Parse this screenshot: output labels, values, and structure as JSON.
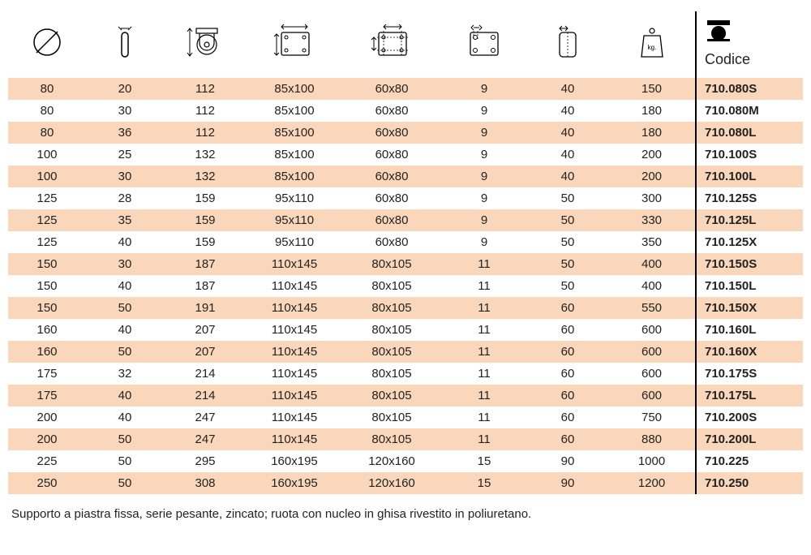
{
  "table": {
    "header_label": "Codice",
    "columns": [
      {
        "id": "diameter"
      },
      {
        "id": "wheel_width"
      },
      {
        "id": "overall_height"
      },
      {
        "id": "plate_size"
      },
      {
        "id": "bolt_hole_spacing"
      },
      {
        "id": "bolt_hole_diameter"
      },
      {
        "id": "offset"
      },
      {
        "id": "load_capacity_kg"
      },
      {
        "id": "code"
      }
    ],
    "rows": [
      [
        "80",
        "20",
        "112",
        "85x100",
        "60x80",
        "9",
        "40",
        "150",
        "710.080S"
      ],
      [
        "80",
        "30",
        "112",
        "85x100",
        "60x80",
        "9",
        "40",
        "180",
        "710.080M"
      ],
      [
        "80",
        "36",
        "112",
        "85x100",
        "60x80",
        "9",
        "40",
        "180",
        "710.080L"
      ],
      [
        "100",
        "25",
        "132",
        "85x100",
        "60x80",
        "9",
        "40",
        "200",
        "710.100S"
      ],
      [
        "100",
        "30",
        "132",
        "85x100",
        "60x80",
        "9",
        "40",
        "200",
        "710.100L"
      ],
      [
        "125",
        "28",
        "159",
        "95x110",
        "60x80",
        "9",
        "50",
        "300",
        "710.125S"
      ],
      [
        "125",
        "35",
        "159",
        "95x110",
        "60x80",
        "9",
        "50",
        "330",
        "710.125L"
      ],
      [
        "125",
        "40",
        "159",
        "95x110",
        "60x80",
        "9",
        "50",
        "350",
        "710.125X"
      ],
      [
        "150",
        "30",
        "187",
        "110x145",
        "80x105",
        "11",
        "50",
        "400",
        "710.150S"
      ],
      [
        "150",
        "40",
        "187",
        "110x145",
        "80x105",
        "11",
        "50",
        "400",
        "710.150L"
      ],
      [
        "150",
        "50",
        "191",
        "110x145",
        "80x105",
        "11",
        "60",
        "550",
        "710.150X"
      ],
      [
        "160",
        "40",
        "207",
        "110x145",
        "80x105",
        "11",
        "60",
        "600",
        "710.160L"
      ],
      [
        "160",
        "50",
        "207",
        "110x145",
        "80x105",
        "11",
        "60",
        "600",
        "710.160X"
      ],
      [
        "175",
        "32",
        "214",
        "110x145",
        "80x105",
        "11",
        "60",
        "600",
        "710.175S"
      ],
      [
        "175",
        "40",
        "214",
        "110x145",
        "80x105",
        "11",
        "60",
        "600",
        "710.175L"
      ],
      [
        "200",
        "40",
        "247",
        "110x145",
        "80x105",
        "11",
        "60",
        "750",
        "710.200S"
      ],
      [
        "200",
        "50",
        "247",
        "110x145",
        "80x105",
        "11",
        "60",
        "880",
        "710.200L"
      ],
      [
        "225",
        "50",
        "295",
        "160x195",
        "120x160",
        "15",
        "90",
        "1000",
        "710.225"
      ],
      [
        "250",
        "50",
        "308",
        "160x195",
        "120x160",
        "15",
        "90",
        "1200",
        "710.250"
      ]
    ],
    "stripe_color": "#fad7bb",
    "background_color": "#ffffff",
    "text_color": "#222222",
    "border_color": "#000000",
    "row_font_size": 15,
    "header_font_size": 18
  },
  "caption": "Supporto a piastra fissa, serie pesante, zincato; ruota con nucleo in ghisa rivestito in poliuretano."
}
